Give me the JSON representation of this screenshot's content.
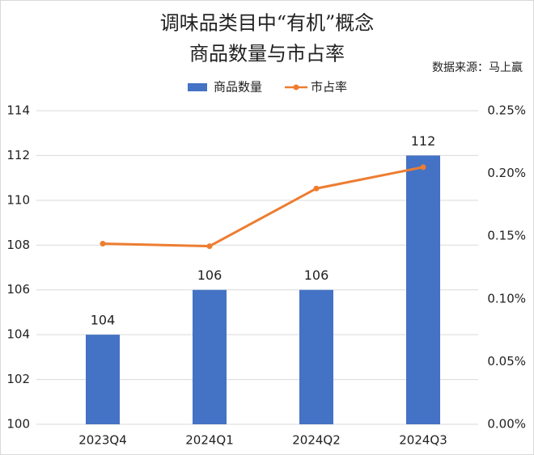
{
  "chart_data": {
    "type": "bar_line",
    "title": [
      "调味品类目中“有机”概念",
      "商品数量与市占率"
    ],
    "source": "数据来源：马上赢",
    "categories": [
      "2023Q4",
      "2024Q1",
      "2024Q2",
      "2024Q3"
    ],
    "series": [
      {
        "name": "商品数量",
        "type": "bar",
        "color": "#4472c4",
        "values": [
          104,
          106,
          106,
          112
        ]
      },
      {
        "name": "市占率",
        "type": "line",
        "axis": "y2",
        "color": "#ed7d31",
        "values": [
          0.144,
          0.142,
          0.188,
          0.205
        ]
      }
    ],
    "ylim": [
      100,
      114
    ],
    "yticks": [
      100,
      102,
      104,
      106,
      108,
      110,
      112,
      114
    ],
    "y2lim": [
      0,
      0.25
    ],
    "y2ticks": [
      {
        "value": 0,
        "label": "0.00%"
      },
      {
        "value": 0.05,
        "label": "0.05%"
      },
      {
        "value": 0.1,
        "label": "0.10%"
      },
      {
        "value": 0.15,
        "label": "0.15%"
      },
      {
        "value": 0.2,
        "label": "0.20%"
      },
      {
        "value": 0.25,
        "label": "0.25%"
      }
    ],
    "grid": true
  }
}
